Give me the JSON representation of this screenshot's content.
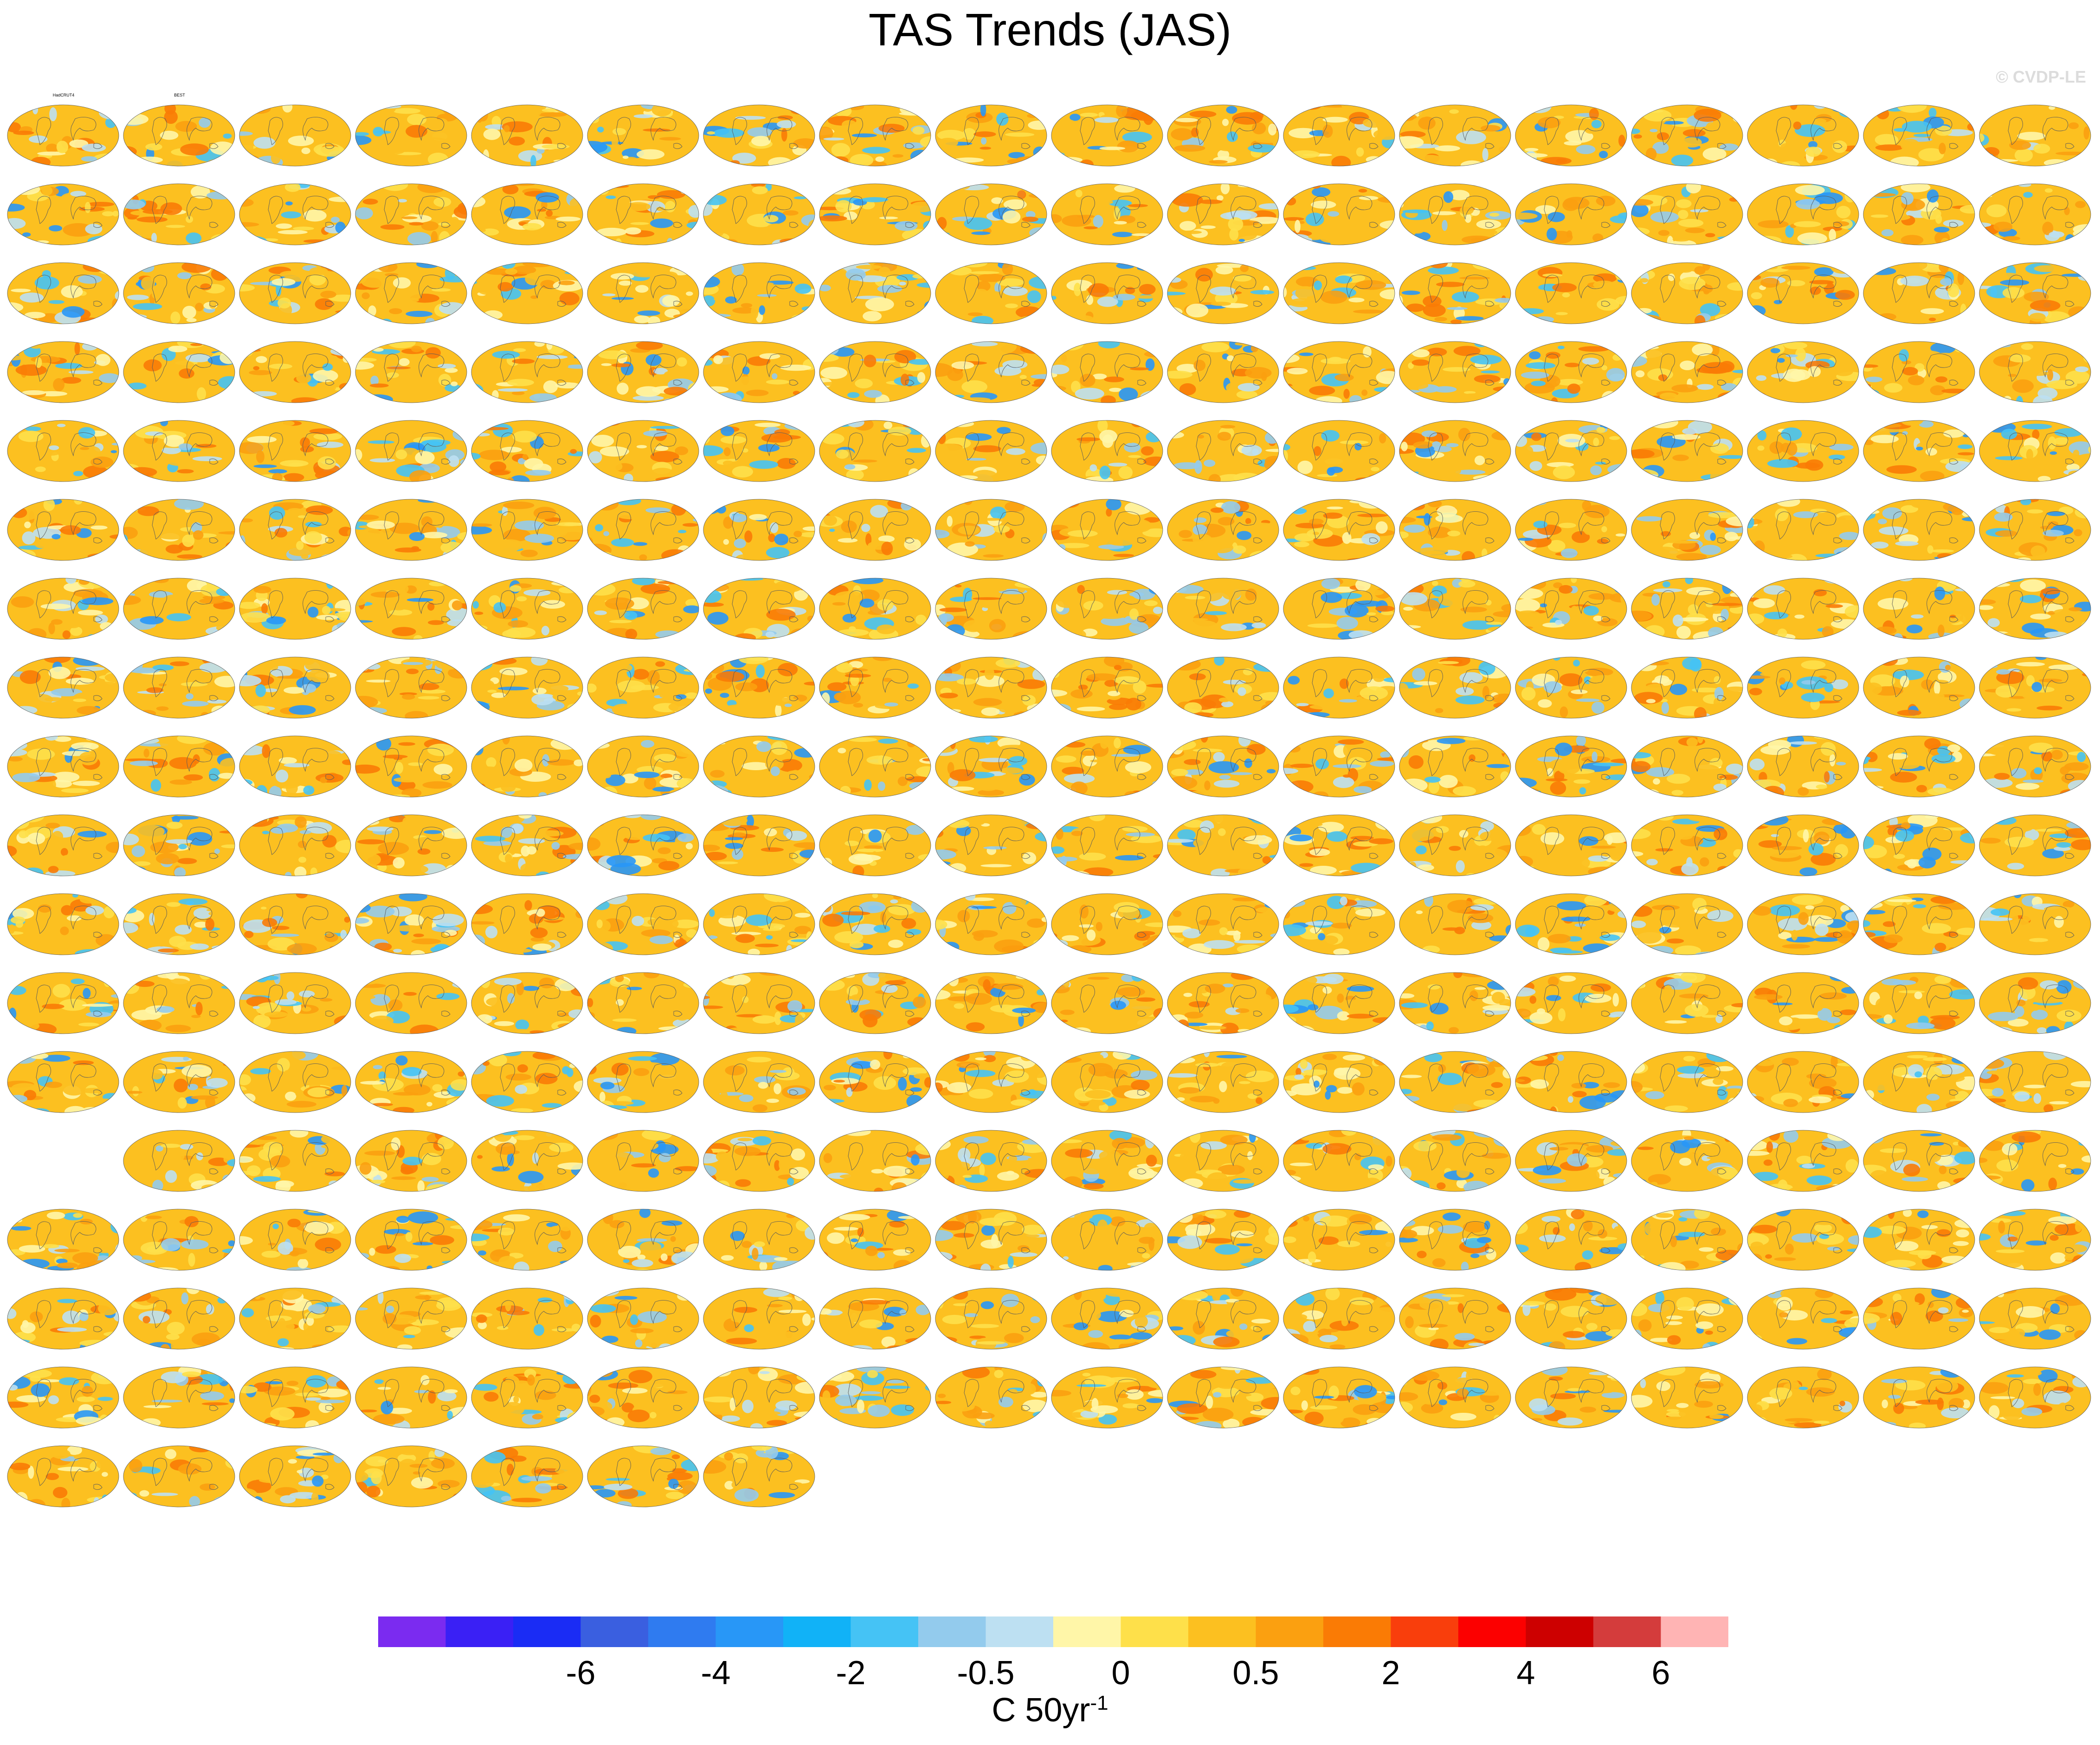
{
  "title": "TAS Trends (JAS)",
  "copyright": "© CVDP-LE",
  "units": {
    "base": "C 50yr",
    "exponent": "-1"
  },
  "colorbar": {
    "colors": [
      "#7b2bf0",
      "#3a20f5",
      "#1a2cf5",
      "#3a5fe0",
      "#2f7bf0",
      "#2897f7",
      "#11b2f7",
      "#45c3f5",
      "#93cbed",
      "#bde0f2",
      "#fff6a8",
      "#fee04a",
      "#fcc020",
      "#fba010",
      "#fa7b05",
      "#f93e0c",
      "#fc0000",
      "#cd0000",
      "#d43c3c",
      "#ffb4b4"
    ],
    "labels": [
      "-6",
      "-4",
      "-2",
      "-0.5",
      "0",
      "0.5",
      "2",
      "4",
      "6"
    ]
  },
  "chart_data": {
    "type": "heatmap",
    "variable": "TAS",
    "season": "JAS",
    "panel_count": 312,
    "panel_titles": {
      "0": "HadCRUT4",
      "1": "BEST"
    },
    "color_scale_levels": [
      "-6",
      "-4",
      "-2",
      "-0.5",
      "0",
      "0.5",
      "2",
      "4",
      "6"
    ],
    "units": "C 50yr-1"
  }
}
